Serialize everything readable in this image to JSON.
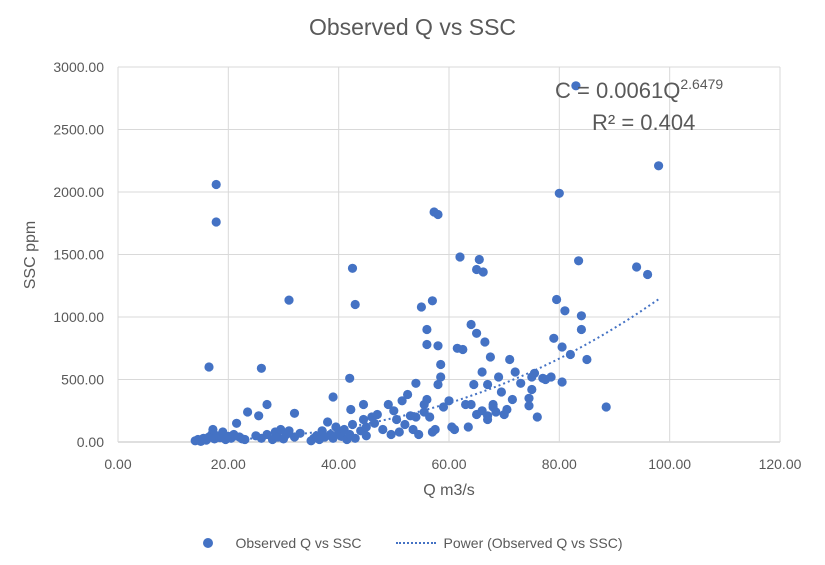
{
  "chart_data": {
    "type": "scatter",
    "title": "Observed Q vs SSC",
    "xlabel": "Q m3/s",
    "ylabel": "SSC ppm",
    "xlim": [
      0,
      120
    ],
    "ylim": [
      0,
      3000
    ],
    "x_ticks": [
      "0.00",
      "20.00",
      "40.00",
      "60.00",
      "80.00",
      "100.00",
      "120.00"
    ],
    "y_ticks": [
      "0.00",
      "500.00",
      "1000.00",
      "1500.00",
      "2000.00",
      "2500.00",
      "3000.00"
    ],
    "grid": true,
    "colors": {
      "series": "#4472C4",
      "grid": "#D9D9D9",
      "text": "#595959"
    },
    "trendline": {
      "name": "Power (Observed Q vs SSC)",
      "type": "power",
      "coef": 0.0061,
      "exponent": 2.6479,
      "x_range": [
        14,
        98
      ],
      "equation_prefix": "C = 0.0061Q",
      "equation_exponent": "2.6479",
      "r2_text": "R² = 0.404"
    },
    "series": [
      {
        "name": "Observed Q vs SSC",
        "points": [
          [
            14,
            10
          ],
          [
            14.5,
            20
          ],
          [
            15,
            5
          ],
          [
            15.5,
            30
          ],
          [
            16,
            15
          ],
          [
            16.5,
            40
          ],
          [
            17,
            60
          ],
          [
            17.2,
            100
          ],
          [
            17.5,
            25
          ],
          [
            18,
            50
          ],
          [
            18.5,
            35
          ],
          [
            19,
            80
          ],
          [
            19.5,
            20
          ],
          [
            20,
            45
          ],
          [
            20.5,
            30
          ],
          [
            21,
            60
          ],
          [
            21.5,
            150
          ],
          [
            22,
            40
          ],
          [
            22.5,
            25
          ],
          [
            23,
            20
          ],
          [
            17.8,
            2060
          ],
          [
            17.8,
            1760
          ],
          [
            16.5,
            600
          ],
          [
            26,
            590
          ],
          [
            23.5,
            240
          ],
          [
            25.5,
            210
          ],
          [
            27,
            300
          ],
          [
            31,
            1135
          ],
          [
            32,
            230
          ],
          [
            25,
            50
          ],
          [
            26,
            30
          ],
          [
            27,
            60
          ],
          [
            28,
            20
          ],
          [
            28.5,
            80
          ],
          [
            29,
            40
          ],
          [
            29.5,
            100
          ],
          [
            30,
            25
          ],
          [
            30.5,
            60
          ],
          [
            31,
            90
          ],
          [
            32,
            40
          ],
          [
            33,
            70
          ],
          [
            35,
            10
          ],
          [
            35.5,
            30
          ],
          [
            36,
            50
          ],
          [
            36.5,
            20
          ],
          [
            37,
            90
          ],
          [
            37.5,
            40
          ],
          [
            38,
            160
          ],
          [
            38.5,
            60
          ],
          [
            39,
            30
          ],
          [
            39.5,
            120
          ],
          [
            40,
            80
          ],
          [
            40.5,
            45
          ],
          [
            41,
            100
          ],
          [
            41.5,
            20
          ],
          [
            42,
            60
          ],
          [
            42.5,
            140
          ],
          [
            43,
            30
          ],
          [
            44,
            90
          ],
          [
            44.5,
            180
          ],
          [
            45,
            50
          ],
          [
            39,
            360
          ],
          [
            42,
            510
          ],
          [
            42.2,
            260
          ],
          [
            42.5,
            1390
          ],
          [
            43,
            1100
          ],
          [
            44.5,
            300
          ],
          [
            45,
            120
          ],
          [
            46,
            200
          ],
          [
            46.5,
            150
          ],
          [
            47,
            220
          ],
          [
            48,
            100
          ],
          [
            49,
            300
          ],
          [
            49.5,
            60
          ],
          [
            50,
            250
          ],
          [
            50.5,
            180
          ],
          [
            51,
            80
          ],
          [
            51.5,
            330
          ],
          [
            52,
            140
          ],
          [
            52.5,
            380
          ],
          [
            53,
            210
          ],
          [
            53.5,
            100
          ],
          [
            54,
            470
          ],
          [
            54.5,
            60
          ],
          [
            55,
            1080
          ],
          [
            55.5,
            240
          ],
          [
            56,
            900
          ],
          [
            56,
            780
          ],
          [
            57,
            1130
          ],
          [
            57.3,
            1840
          ],
          [
            58,
            1820
          ],
          [
            58,
            770
          ],
          [
            58.5,
            620
          ],
          [
            58.5,
            520
          ],
          [
            58,
            460
          ],
          [
            57.5,
            100
          ],
          [
            57,
            80
          ],
          [
            56.5,
            200
          ],
          [
            56,
            340
          ],
          [
            55.5,
            300
          ],
          [
            54,
            200
          ],
          [
            59,
            280
          ],
          [
            60,
            330
          ],
          [
            60.5,
            120
          ],
          [
            61,
            100
          ],
          [
            61.5,
            750
          ],
          [
            62,
            1480
          ],
          [
            62.5,
            740
          ],
          [
            63,
            300
          ],
          [
            63.5,
            120
          ],
          [
            64,
            940
          ],
          [
            64.5,
            460
          ],
          [
            65,
            870
          ],
          [
            65,
            1380
          ],
          [
            65.5,
            1460
          ],
          [
            66,
            560
          ],
          [
            66.2,
            1360
          ],
          [
            66.5,
            800
          ],
          [
            67,
            460
          ],
          [
            67,
            180
          ],
          [
            67.5,
            680
          ],
          [
            68,
            300
          ],
          [
            68.5,
            240
          ],
          [
            69,
            520
          ],
          [
            69.5,
            400
          ],
          [
            70,
            220
          ],
          [
            70.5,
            260
          ],
          [
            71,
            660
          ],
          [
            71.5,
            340
          ],
          [
            72,
            560
          ],
          [
            73,
            470
          ],
          [
            74.5,
            350
          ],
          [
            74.5,
            290
          ],
          [
            75,
            420
          ],
          [
            75,
            520
          ],
          [
            75.5,
            550
          ],
          [
            76,
            200
          ],
          [
            77,
            510
          ],
          [
            77.5,
            500
          ],
          [
            78.5,
            520
          ],
          [
            79,
            830
          ],
          [
            79.5,
            1140
          ],
          [
            80,
            1990
          ],
          [
            80.5,
            480
          ],
          [
            80.5,
            760
          ],
          [
            81,
            1050
          ],
          [
            82,
            700
          ],
          [
            83,
            2850
          ],
          [
            83.5,
            1450
          ],
          [
            84,
            1010
          ],
          [
            84,
            900
          ],
          [
            85,
            660
          ],
          [
            88.5,
            280
          ],
          [
            94,
            1400
          ],
          [
            96,
            1340
          ],
          [
            98,
            2210
          ],
          [
            64,
            300
          ],
          [
            65,
            220
          ],
          [
            66,
            250
          ],
          [
            67,
            210
          ],
          [
            68,
            280
          ]
        ]
      }
    ]
  },
  "legend": {
    "scatter_label": "Observed Q vs SSC",
    "trend_label": "Power (Observed Q vs SSC)"
  }
}
